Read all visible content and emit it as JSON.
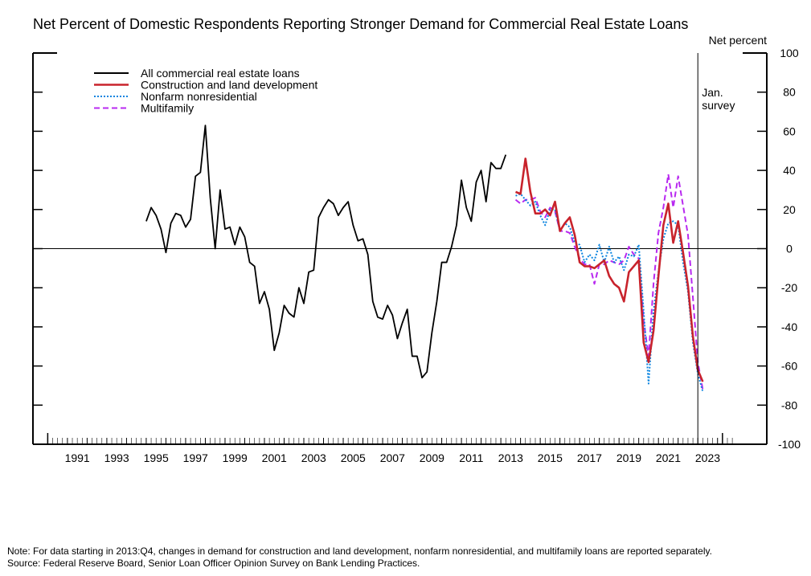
{
  "chart_data": {
    "type": "line",
    "title": "Net Percent of Domestic Respondents Reporting Stronger Demand for Commercial Real Estate Loans",
    "ylabel": "Net percent",
    "ylim": [
      -100,
      100
    ],
    "xlim": [
      1989.25,
      2026.5
    ],
    "y_ticks": [
      100,
      80,
      60,
      40,
      20,
      0,
      -20,
      -40,
      -60,
      -80,
      -100
    ],
    "x_tick_labels": [
      "1991",
      "1993",
      "1995",
      "1997",
      "1999",
      "2001",
      "2003",
      "2005",
      "2007",
      "2009",
      "2011",
      "2013",
      "2015",
      "2017",
      "2019",
      "2021",
      "2023"
    ],
    "zero_line": true,
    "legend_position": "top-left",
    "annotation": {
      "text_line1": "Jan.",
      "text_line2": "survey",
      "x": 2023.0
    },
    "series": [
      {
        "name": "All commercial real estate loans",
        "color": "#000000",
        "style": "solid",
        "points": [
          [
            1995.0,
            14
          ],
          [
            1995.25,
            21
          ],
          [
            1995.5,
            17
          ],
          [
            1995.75,
            10
          ],
          [
            1996.0,
            -2
          ],
          [
            1996.25,
            13
          ],
          [
            1996.5,
            18
          ],
          [
            1996.75,
            17
          ],
          [
            1997.0,
            11
          ],
          [
            1997.25,
            15
          ],
          [
            1997.5,
            37
          ],
          [
            1997.75,
            39
          ],
          [
            1998.0,
            63
          ],
          [
            1998.25,
            26
          ],
          [
            1998.5,
            0
          ],
          [
            1998.75,
            30
          ],
          [
            1999.0,
            10
          ],
          [
            1999.25,
            11
          ],
          [
            1999.5,
            2
          ],
          [
            1999.75,
            11
          ],
          [
            2000.0,
            6
          ],
          [
            2000.25,
            -7
          ],
          [
            2000.5,
            -9
          ],
          [
            2000.75,
            -28
          ],
          [
            2001.0,
            -22
          ],
          [
            2001.25,
            -31
          ],
          [
            2001.5,
            -52
          ],
          [
            2001.75,
            -43
          ],
          [
            2002.0,
            -29
          ],
          [
            2002.25,
            -33
          ],
          [
            2002.5,
            -35
          ],
          [
            2002.75,
            -20
          ],
          [
            2003.0,
            -28
          ],
          [
            2003.25,
            -12
          ],
          [
            2003.5,
            -11
          ],
          [
            2003.75,
            16
          ],
          [
            2004.0,
            21
          ],
          [
            2004.25,
            25
          ],
          [
            2004.5,
            23
          ],
          [
            2004.75,
            17
          ],
          [
            2005.0,
            21
          ],
          [
            2005.25,
            24
          ],
          [
            2005.5,
            12
          ],
          [
            2005.75,
            4
          ],
          [
            2006.0,
            5
          ],
          [
            2006.25,
            -3
          ],
          [
            2006.5,
            -27
          ],
          [
            2006.75,
            -35
          ],
          [
            2007.0,
            -36
          ],
          [
            2007.25,
            -29
          ],
          [
            2007.5,
            -34
          ],
          [
            2007.75,
            -46
          ],
          [
            2008.0,
            -38
          ],
          [
            2008.25,
            -31
          ],
          [
            2008.5,
            -55
          ],
          [
            2008.75,
            -55
          ],
          [
            2009.0,
            -66
          ],
          [
            2009.25,
            -63
          ],
          [
            2009.5,
            -43
          ],
          [
            2009.75,
            -27
          ],
          [
            2010.0,
            -7
          ],
          [
            2010.25,
            -7
          ],
          [
            2010.5,
            1
          ],
          [
            2010.75,
            12
          ],
          [
            2011.0,
            35
          ],
          [
            2011.25,
            21
          ],
          [
            2011.5,
            14
          ],
          [
            2011.75,
            34
          ],
          [
            2012.0,
            40
          ],
          [
            2012.25,
            24
          ],
          [
            2012.5,
            44
          ],
          [
            2012.75,
            41
          ],
          [
            2013.0,
            41
          ],
          [
            2013.25,
            48
          ]
        ]
      },
      {
        "name": "Construction and land development",
        "color": "#c8232c",
        "style": "solid",
        "points": [
          [
            2013.75,
            29
          ],
          [
            2014.0,
            28
          ],
          [
            2014.25,
            46
          ],
          [
            2014.5,
            29
          ],
          [
            2014.75,
            18
          ],
          [
            2015.0,
            18
          ],
          [
            2015.25,
            20
          ],
          [
            2015.5,
            17
          ],
          [
            2015.75,
            24
          ],
          [
            2016.0,
            9
          ],
          [
            2016.25,
            13
          ],
          [
            2016.5,
            16
          ],
          [
            2016.75,
            7
          ],
          [
            2017.0,
            -7
          ],
          [
            2017.25,
            -9
          ],
          [
            2017.5,
            -9
          ],
          [
            2017.75,
            -10
          ],
          [
            2018.0,
            -8
          ],
          [
            2018.25,
            -6
          ],
          [
            2018.5,
            -14
          ],
          [
            2018.75,
            -18
          ],
          [
            2019.0,
            -20
          ],
          [
            2019.25,
            -27
          ],
          [
            2019.5,
            -12
          ],
          [
            2019.75,
            -9
          ],
          [
            2020.0,
            -6
          ],
          [
            2020.25,
            -48
          ],
          [
            2020.5,
            -58
          ],
          [
            2020.75,
            -42
          ],
          [
            2021.0,
            -14
          ],
          [
            2021.25,
            12
          ],
          [
            2021.5,
            23
          ],
          [
            2021.75,
            3
          ],
          [
            2022.0,
            14
          ],
          [
            2022.25,
            -2
          ],
          [
            2022.5,
            -19
          ],
          [
            2022.75,
            -45
          ],
          [
            2023.0,
            -62
          ],
          [
            2023.25,
            -68
          ]
        ]
      },
      {
        "name": "Nonfarm nonresidential",
        "color": "#0a84e0",
        "style": "dotted",
        "points": [
          [
            2013.75,
            27
          ],
          [
            2014.0,
            28
          ],
          [
            2014.25,
            25
          ],
          [
            2014.5,
            22
          ],
          [
            2014.75,
            24
          ],
          [
            2015.0,
            17
          ],
          [
            2015.25,
            12
          ],
          [
            2015.5,
            20
          ],
          [
            2015.75,
            20
          ],
          [
            2016.0,
            9
          ],
          [
            2016.25,
            13
          ],
          [
            2016.5,
            11
          ],
          [
            2016.75,
            3
          ],
          [
            2017.0,
            2
          ],
          [
            2017.25,
            -7
          ],
          [
            2017.5,
            -3
          ],
          [
            2017.75,
            -6
          ],
          [
            2018.0,
            2
          ],
          [
            2018.25,
            -7
          ],
          [
            2018.5,
            1
          ],
          [
            2018.75,
            -7
          ],
          [
            2019.0,
            -4
          ],
          [
            2019.25,
            -11
          ],
          [
            2019.5,
            -3
          ],
          [
            2019.75,
            -4
          ],
          [
            2020.0,
            2
          ],
          [
            2020.25,
            -32
          ],
          [
            2020.5,
            -69
          ],
          [
            2020.75,
            -32
          ],
          [
            2021.0,
            -12
          ],
          [
            2021.25,
            5
          ],
          [
            2021.5,
            13
          ],
          [
            2021.75,
            14
          ],
          [
            2022.0,
            12
          ],
          [
            2022.25,
            -7
          ],
          [
            2022.5,
            -22
          ],
          [
            2022.75,
            -48
          ],
          [
            2023.0,
            -64
          ],
          [
            2023.25,
            -73
          ]
        ]
      },
      {
        "name": "Multifamily",
        "color": "#b829f0",
        "style": "dashed",
        "points": [
          [
            2013.75,
            25
          ],
          [
            2014.0,
            23
          ],
          [
            2014.25,
            25
          ],
          [
            2014.5,
            25
          ],
          [
            2014.75,
            26
          ],
          [
            2015.0,
            19
          ],
          [
            2015.25,
            16
          ],
          [
            2015.5,
            21
          ],
          [
            2015.75,
            19
          ],
          [
            2016.0,
            9
          ],
          [
            2016.25,
            9
          ],
          [
            2016.5,
            8
          ],
          [
            2016.75,
            1
          ],
          [
            2017.0,
            -5
          ],
          [
            2017.25,
            -8
          ],
          [
            2017.5,
            -8
          ],
          [
            2017.75,
            -18
          ],
          [
            2018.0,
            -8
          ],
          [
            2018.25,
            -8
          ],
          [
            2018.5,
            -6
          ],
          [
            2018.75,
            -7
          ],
          [
            2019.0,
            -8
          ],
          [
            2019.25,
            -6
          ],
          [
            2019.5,
            1
          ],
          [
            2019.75,
            -3
          ],
          [
            2020.0,
            -5
          ],
          [
            2020.25,
            -37
          ],
          [
            2020.5,
            -55
          ],
          [
            2020.75,
            -18
          ],
          [
            2021.0,
            8
          ],
          [
            2021.25,
            21
          ],
          [
            2021.5,
            38
          ],
          [
            2021.75,
            21
          ],
          [
            2022.0,
            37
          ],
          [
            2022.25,
            22
          ],
          [
            2022.5,
            7
          ],
          [
            2022.75,
            -25
          ],
          [
            2023.0,
            -58
          ],
          [
            2023.25,
            -72
          ]
        ]
      }
    ]
  },
  "notes": {
    "note": "Note: For data starting in 2013:Q4, changes in demand for construction and land development, nonfarm nonresidential, and multifamily loans are reported separately.",
    "source": "Source:  Federal Reserve Board, Senior Loan Officer Opinion Survey on Bank Lending Practices."
  }
}
